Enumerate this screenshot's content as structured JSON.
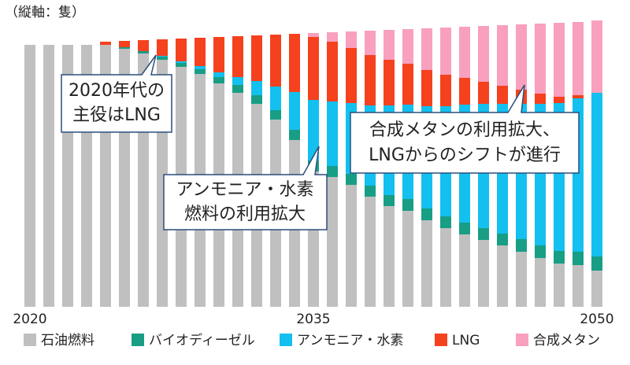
{
  "chart_data": {
    "type": "bar",
    "stacked": true,
    "unit_label": "（縦軸：隻）",
    "categories": [
      "2020",
      null,
      null,
      null,
      null,
      null,
      null,
      null,
      null,
      null,
      null,
      null,
      null,
      null,
      null,
      "2035",
      null,
      null,
      null,
      null,
      null,
      null,
      null,
      null,
      null,
      null,
      null,
      null,
      null,
      null,
      "2050"
    ],
    "ylim": [
      0,
      370
    ],
    "series": [
      {
        "name": "石油燃料",
        "color": "#c0c0c0",
        "values": [
          333,
          333,
          333,
          333,
          333,
          328,
          322,
          314,
          305,
          296,
          284,
          272,
          258,
          238,
          212,
          172,
          165,
          155,
          140,
          128,
          122,
          110,
          100,
          92,
          85,
          78,
          70,
          62,
          55,
          53,
          46
        ]
      },
      {
        "name": "バイオディーゼル",
        "color": "#179e85",
        "values": [
          0,
          0,
          0,
          0,
          0,
          2,
          3,
          4,
          5,
          6,
          8,
          10,
          11,
          12,
          13,
          14,
          14,
          14,
          14,
          14,
          15,
          15,
          15,
          15,
          15,
          15,
          16,
          16,
          16,
          17,
          18
        ]
      },
      {
        "name": "アンモニア・水素",
        "color": "#13c0ef",
        "values": [
          0,
          0,
          0,
          0,
          0,
          0,
          0,
          1,
          2,
          4,
          6,
          10,
          18,
          30,
          48,
          77,
          82,
          90,
          102,
          114,
          120,
          130,
          140,
          150,
          158,
          165,
          172,
          180,
          188,
          195,
          208
        ]
      },
      {
        "name": "LNG",
        "color": "#f5411e",
        "values": [
          0,
          0,
          0,
          0,
          4,
          8,
          14,
          21,
          29,
          36,
          45,
          52,
          58,
          66,
          74,
          80,
          76,
          70,
          64,
          58,
          52,
          46,
          40,
          34,
          28,
          23,
          18,
          13,
          8,
          4,
          0
        ]
      },
      {
        "name": "合成メタン",
        "color": "#f8a0be",
        "values": [
          0,
          0,
          0,
          0,
          0,
          0,
          0,
          0,
          0,
          0,
          0,
          0,
          0,
          0,
          0,
          5,
          12,
          21,
          31,
          38,
          44,
          53,
          60,
          65,
          71,
          77,
          83,
          89,
          94,
          93,
          92
        ]
      }
    ],
    "annotations": [
      {
        "lines": [
          "2020年代の",
          "主役はLNG"
        ]
      },
      {
        "lines": [
          "アンモニア・水素",
          "燃料の利用拡大"
        ]
      },
      {
        "lines": [
          "合成メタンの利用拡大、",
          "LNGからのシフトが進行"
        ]
      }
    ]
  }
}
